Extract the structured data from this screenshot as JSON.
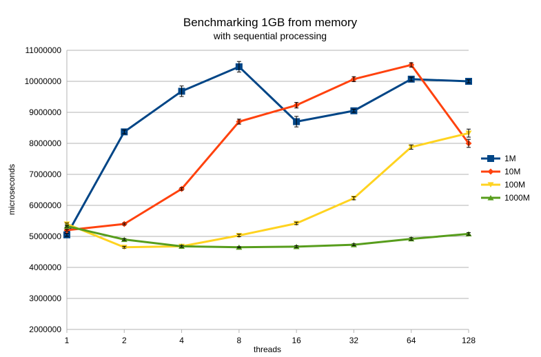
{
  "chart_data": {
    "type": "line",
    "title": "Benchmarking 1GB from memory",
    "subtitle": "with sequential processing",
    "xlabel": "threads",
    "ylabel": "microseconds",
    "categories": [
      "1",
      "2",
      "4",
      "8",
      "16",
      "32",
      "64",
      "128"
    ],
    "ylim": [
      2000000,
      11000000
    ],
    "yticks": [
      "2000000",
      "3000000",
      "4000000",
      "5000000",
      "6000000",
      "7000000",
      "8000000",
      "9000000",
      "10000000",
      "11000000"
    ],
    "grid": "horizontal",
    "legend": "right",
    "series": [
      {
        "name": "1M",
        "color": "#004586",
        "marker": "square",
        "values": [
          5050000,
          8370000,
          9680000,
          10470000,
          8700000,
          9050000,
          10070000,
          10000000
        ],
        "errors": [
          50000,
          60000,
          170000,
          170000,
          170000,
          50000,
          60000,
          50000
        ]
      },
      {
        "name": "10M",
        "color": "#ff420e",
        "marker": "diamond",
        "values": [
          5200000,
          5400000,
          6530000,
          8700000,
          9230000,
          10070000,
          10530000,
          8000000
        ],
        "errors": [
          30000,
          30000,
          40000,
          80000,
          90000,
          80000,
          70000,
          130000
        ]
      },
      {
        "name": "100M",
        "color": "#ffd320",
        "marker": "triangle-down",
        "values": [
          5400000,
          4650000,
          4680000,
          5030000,
          5420000,
          6230000,
          7880000,
          8330000
        ],
        "errors": [
          30000,
          30000,
          30000,
          40000,
          40000,
          50000,
          70000,
          130000
        ]
      },
      {
        "name": "1000M",
        "color": "#579d1c",
        "marker": "triangle-up",
        "values": [
          5330000,
          4900000,
          4680000,
          4650000,
          4670000,
          4730000,
          4920000,
          5080000
        ],
        "errors": [
          30000,
          30000,
          30000,
          20000,
          30000,
          30000,
          40000,
          40000
        ]
      }
    ]
  }
}
